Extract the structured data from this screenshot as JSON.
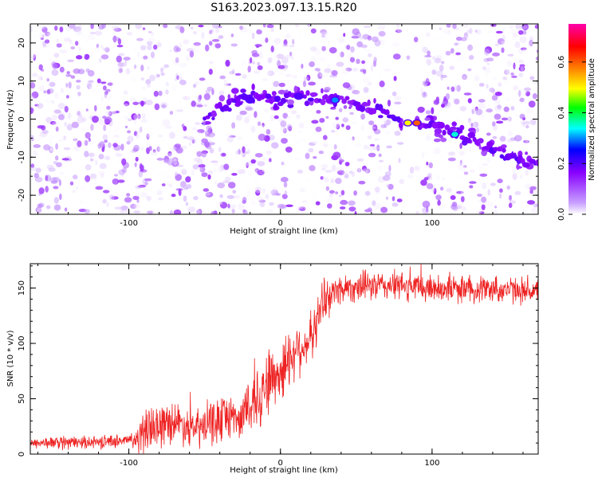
{
  "title": "S163.2023.097.13.15.R20",
  "chart_data": [
    {
      "type": "heatmap",
      "xlabel": "Height of straight line (km)",
      "ylabel": "Frequency (Hz)",
      "xlim": [
        -165,
        170
      ],
      "ylim": [
        -25,
        25
      ],
      "xticks": [
        -100,
        0,
        100
      ],
      "yticks": [
        -20,
        -10,
        0,
        10,
        20
      ],
      "colorbar": {
        "label": "Normalized spectral amplitude",
        "range": [
          0.0,
          0.75
        ],
        "ticks": [
          0.0,
          0.2,
          0.4,
          0.6
        ],
        "colors": [
          "#ffffff",
          "#c8a0ff",
          "#8800ff",
          "#0000ff",
          "#00ffff",
          "#00ff00",
          "#ffff00",
          "#ff8800",
          "#ff0000",
          "#ff00aa"
        ]
      },
      "ridge": {
        "x": [
          -50,
          -40,
          -25,
          -10,
          0,
          10,
          20,
          30,
          40,
          50,
          60,
          70,
          80,
          85,
          90,
          100,
          110,
          120,
          130,
          140,
          150,
          160,
          170
        ],
        "y": [
          0,
          3,
          6,
          6,
          5,
          6,
          6,
          5,
          5,
          4,
          3,
          2,
          0,
          -1,
          -1,
          -2,
          -3,
          -4,
          -6,
          -8,
          -10,
          -11,
          -12
        ]
      },
      "hotspots": [
        {
          "x": -20,
          "y": 5,
          "value": 0.2
        },
        {
          "x": 12,
          "y": 6,
          "value": 0.2
        },
        {
          "x": 36,
          "y": 5,
          "value": 0.3
        },
        {
          "x": 84,
          "y": -1,
          "value": 0.5
        },
        {
          "x": 90,
          "y": -1,
          "value": 0.6
        },
        {
          "x": 115,
          "y": -4,
          "value": 0.35
        }
      ],
      "gaps": [
        [
          80,
          90
        ],
        [
          -112,
          -110
        ]
      ]
    },
    {
      "type": "line",
      "xlabel": "Height of straight line (km)",
      "ylabel": "SNR (10 * v/v)",
      "xlim": [
        -165,
        170
      ],
      "ylim": [
        0,
        172
      ],
      "xticks": [
        -100,
        0,
        100
      ],
      "yticks": [
        0,
        50,
        100,
        150
      ],
      "color": "#ee2222",
      "trend": {
        "x": [
          -165,
          -120,
          -95,
          -85,
          -70,
          -55,
          -45,
          -35,
          -25,
          -20,
          -15,
          -5,
          0,
          10,
          18,
          22,
          28,
          40,
          60,
          80,
          100,
          130,
          170
        ],
        "y": [
          10,
          11,
          13,
          25,
          30,
          22,
          28,
          35,
          33,
          45,
          55,
          70,
          75,
          95,
          100,
          110,
          140,
          150,
          152,
          152,
          150,
          150,
          147
        ]
      },
      "noise": {
        "x": [
          -165,
          -100,
          -90,
          -60,
          -40,
          -25,
          -20,
          0,
          20,
          40,
          170
        ],
        "amplitude": [
          5,
          6,
          20,
          18,
          22,
          18,
          35,
          30,
          22,
          14,
          12
        ]
      }
    }
  ]
}
